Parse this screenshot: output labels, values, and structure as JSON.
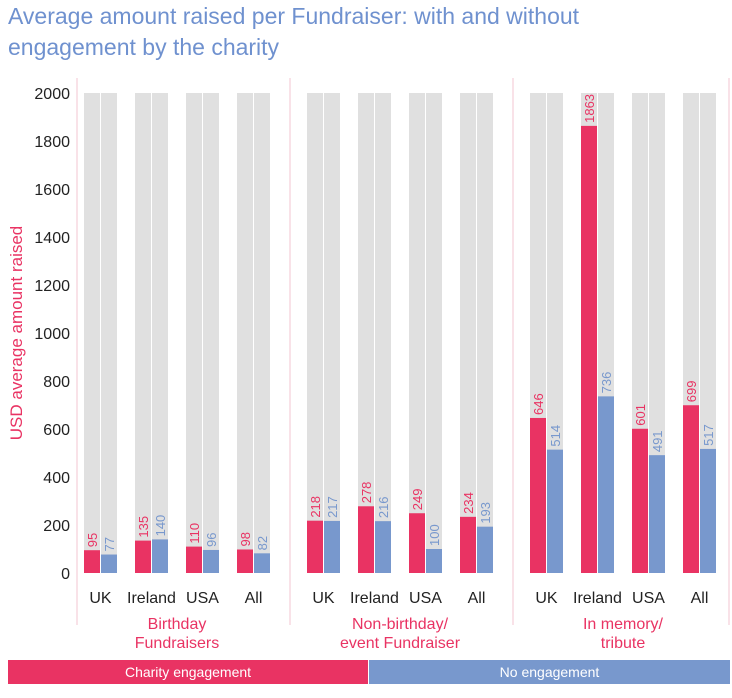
{
  "chart_data": {
    "type": "bar",
    "title": "Average amount raised per Fundraiser: with and without engagement by the charity",
    "title_lines": [
      "Average amount raised per Fundraiser: with and without",
      "engagement by the charity"
    ],
    "ylabel": "USD average amount raised",
    "ylim": [
      0,
      2000
    ],
    "yticks": [
      0,
      200,
      400,
      600,
      800,
      1000,
      1200,
      1400,
      1600,
      1800,
      2000
    ],
    "colors": {
      "title": "#6f91cf",
      "charity": "#e93363",
      "no_engagement": "#7898cd",
      "background_bar": "#e0e0e0",
      "divider": "#f3c6d1",
      "axis_text": "#222222"
    },
    "groups": [
      {
        "label_lines": [
          "Birthday",
          "Fundraisers"
        ],
        "categories": [
          "UK",
          "Ireland",
          "USA",
          "All"
        ],
        "charity": [
          95,
          135,
          110,
          98
        ],
        "no_engagement": [
          77,
          140,
          96,
          82
        ]
      },
      {
        "label_lines": [
          "Non-birthday/",
          "event Fundraiser"
        ],
        "categories": [
          "UK",
          "Ireland",
          "USA",
          "All"
        ],
        "charity": [
          218,
          278,
          249,
          234
        ],
        "no_engagement": [
          217,
          216,
          100,
          193
        ]
      },
      {
        "label_lines": [
          "In memory/",
          "tribute"
        ],
        "categories": [
          "UK",
          "Ireland",
          "USA",
          "All"
        ],
        "charity": [
          646,
          1863,
          601,
          699
        ],
        "no_engagement": [
          514,
          736,
          491,
          517
        ]
      }
    ],
    "legend": [
      {
        "label": "Charity engagement",
        "color": "#e93363"
      },
      {
        "label": "No engagement",
        "color": "#7898cd"
      }
    ]
  }
}
